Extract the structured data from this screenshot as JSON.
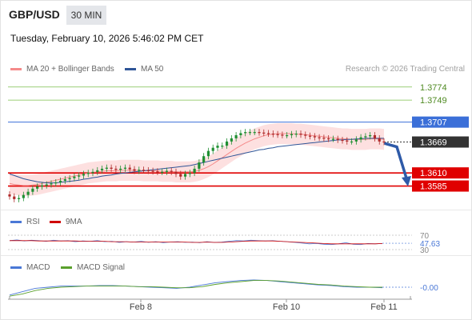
{
  "header": {
    "symbol": "GBP/USD",
    "timeframe": "30 MIN",
    "datetime": "Tuesday, February 10, 2026 5:46:02 PM CET"
  },
  "legend": {
    "ma20_label": "MA 20 + Bollinger Bands",
    "ma50_label": "MA 50",
    "credit": "Research © 2026 Trading Central",
    "rsi_label": "RSI",
    "rsi_ma_label": "9MA",
    "macd_label": "MACD",
    "macd_signal_label": "MACD Signal"
  },
  "colors": {
    "ma20": "#f58a8a",
    "ma50": "#2f5597",
    "bands_fill": "#fde0e0",
    "candle_up": "#1f8f32",
    "candle_down": "#b02a2a",
    "target": "#7cbf4a",
    "resistance": "#3b6fd8",
    "support": "#e00000",
    "current": "#333333",
    "arrow": "#2e5aa8",
    "macd_line": "#4a78d6",
    "macd_signal": "#5aa02c"
  },
  "chart_data": [
    {
      "type": "candlestick",
      "title": "GBP/USD",
      "ylim": [
        1.354,
        1.3795
      ],
      "x_tick_labels": [
        "Feb 8",
        "Feb 10",
        "Feb 11"
      ],
      "levels": [
        {
          "name": "target_2",
          "value": 1.3774,
          "label": "1.3774"
        },
        {
          "name": "target_1",
          "value": 1.3749,
          "label": "1.3749"
        },
        {
          "name": "resistance",
          "value": 1.3707,
          "label": "1.3707"
        },
        {
          "name": "last_price",
          "value": 1.3669,
          "label": "1.3669"
        },
        {
          "name": "support_1",
          "value": 1.361,
          "label": "1.3610"
        },
        {
          "name": "support_2",
          "value": 1.3585,
          "label": "1.3585"
        }
      ],
      "close_series": [
        1.3565,
        1.356,
        1.3562,
        1.3568,
        1.3574,
        1.358,
        1.3584,
        1.3586,
        1.3588,
        1.359,
        1.3592,
        1.3595,
        1.3598,
        1.36,
        1.3603,
        1.3605,
        1.3608,
        1.361,
        1.3612,
        1.3615,
        1.3618,
        1.362,
        1.3618,
        1.3616,
        1.3618,
        1.362,
        1.3617,
        1.3614,
        1.3616,
        1.3615,
        1.3614,
        1.3613,
        1.3612,
        1.3612,
        1.3614,
        1.3612,
        1.3608,
        1.3603,
        1.3608,
        1.361,
        1.3618,
        1.363,
        1.3642,
        1.3652,
        1.3658,
        1.3662,
        1.3662,
        1.367,
        1.3676,
        1.3682,
        1.3686,
        1.3688,
        1.3688,
        1.3688,
        1.3687,
        1.3686,
        1.3685,
        1.3684,
        1.3683,
        1.3682,
        1.3682,
        1.3684,
        1.3685,
        1.3683,
        1.3681,
        1.368,
        1.3678,
        1.3677,
        1.3676,
        1.3675,
        1.3675,
        1.3673,
        1.3672,
        1.367,
        1.367,
        1.3674,
        1.3678,
        1.368,
        1.3682,
        1.3676,
        1.367,
        1.3669
      ],
      "ma20_series": [
        1.359,
        1.3588,
        1.3587,
        1.3586,
        1.3586,
        1.3587,
        1.3588,
        1.359,
        1.3592,
        1.3594,
        1.3596,
        1.3598,
        1.36,
        1.3602,
        1.3604,
        1.3606,
        1.3608,
        1.361,
        1.3611,
        1.3612,
        1.3613,
        1.3614,
        1.3614,
        1.3614,
        1.3615,
        1.3615,
        1.3615,
        1.3615,
        1.3615,
        1.3614,
        1.3614,
        1.3614,
        1.3614,
        1.3613,
        1.3613,
        1.3613,
        1.3612,
        1.3612,
        1.3612,
        1.3612,
        1.3613,
        1.3615,
        1.3618,
        1.3622,
        1.3627,
        1.3633,
        1.3639,
        1.3645,
        1.3651,
        1.3657,
        1.3662,
        1.3667,
        1.3671,
        1.3675,
        1.3678,
        1.3681,
        1.3683,
        1.3684,
        1.3685,
        1.3685,
        1.3685,
        1.3685,
        1.3684,
        1.3684,
        1.3683,
        1.3682,
        1.3681,
        1.368,
        1.3679,
        1.3678,
        1.3677,
        1.3676,
        1.3675,
        1.3675,
        1.3674,
        1.3674,
        1.3674,
        1.3674,
        1.3675,
        1.3675,
        1.3675,
        1.3674
      ],
      "ma50_series": [
        1.3608,
        1.3605,
        1.3602,
        1.3599,
        1.3597,
        1.3595,
        1.3593,
        1.3592,
        1.3591,
        1.3591,
        1.3591,
        1.3592,
        1.3593,
        1.3594,
        1.3595,
        1.3596,
        1.3598,
        1.3599,
        1.3601,
        1.3602,
        1.3604,
        1.3605,
        1.3606,
        1.3608,
        1.3609,
        1.361,
        1.3611,
        1.3612,
        1.3613,
        1.3614,
        1.3615,
        1.3616,
        1.3617,
        1.3618,
        1.3619,
        1.362,
        1.3621,
        1.3622,
        1.3623,
        1.3624,
        1.3626,
        1.3628,
        1.363,
        1.3632,
        1.3634,
        1.3636,
        1.3638,
        1.364,
        1.3642,
        1.3644,
        1.3646,
        1.3648,
        1.365,
        1.3652,
        1.3654,
        1.3655,
        1.3657,
        1.3658,
        1.366,
        1.3661,
        1.3662,
        1.3663,
        1.3664,
        1.3665,
        1.3666,
        1.3667,
        1.3668,
        1.3669,
        1.367,
        1.3671,
        1.3672,
        1.3673,
        1.3673,
        1.3674,
        1.3674,
        1.3675,
        1.3675,
        1.3676,
        1.3676,
        1.3676,
        1.3676,
        1.3676
      ],
      "band_width": 0.002
    },
    {
      "type": "line",
      "title": "RSI",
      "ylim": [
        30,
        70
      ],
      "levels": [
        {
          "value": 70,
          "label": "70"
        },
        {
          "value": 30,
          "label": "30"
        }
      ],
      "last_value_label": "47.63",
      "series": [
        {
          "name": "RSI",
          "values": [
            55,
            57,
            54,
            56,
            55,
            53,
            56,
            54,
            55,
            52,
            54,
            53,
            55,
            52,
            53,
            50,
            52,
            51,
            53,
            50,
            52,
            49,
            51,
            52,
            50,
            51,
            49,
            52,
            50,
            51,
            53,
            55,
            54,
            56,
            55,
            54,
            55,
            53,
            52,
            50,
            48,
            46,
            47,
            45,
            44,
            46,
            49,
            45,
            44,
            47,
            46,
            47
          ]
        },
        {
          "name": "9MA",
          "values": [
            55,
            55,
            55,
            55,
            54,
            54,
            54,
            54,
            54,
            54,
            53,
            53,
            53,
            53,
            52,
            52,
            52,
            51,
            51,
            51,
            51,
            51,
            51,
            51,
            51,
            50,
            50,
            51,
            50,
            50,
            51,
            52,
            53,
            54,
            54,
            54,
            54,
            53,
            52,
            51,
            50,
            49,
            48,
            47,
            46,
            46,
            46,
            46,
            46,
            46,
            46,
            47
          ]
        }
      ]
    },
    {
      "type": "line",
      "title": "MACD",
      "ylim": [
        -0.002,
        0.002
      ],
      "last_value_label": "-0.00",
      "series": [
        {
          "name": "MACD",
          "values": [
            -0.0014,
            -0.0008,
            -0.0002,
            0.0,
            0.0002,
            0.0002,
            0.0002,
            0.0003,
            0.0003,
            0.0002,
            0.0001,
            0.0,
            -0.0001,
            -0.0002,
            0.0,
            0.0004,
            0.0008,
            0.001,
            0.0012,
            0.0013,
            0.0012,
            0.001,
            0.0008,
            0.0006,
            0.0004,
            0.0003,
            0.0001,
            0.0,
            0.0,
            -0.0001
          ]
        },
        {
          "name": "MACD Signal",
          "values": [
            -0.0016,
            -0.0012,
            -0.0006,
            -0.0002,
            0.0,
            0.0001,
            0.0002,
            0.0002,
            0.0002,
            0.0002,
            0.0001,
            0.0001,
            0.0,
            -0.0001,
            -0.0001,
            0.0001,
            0.0005,
            0.0008,
            0.001,
            0.0012,
            0.0012,
            0.0011,
            0.0009,
            0.0007,
            0.0005,
            0.0004,
            0.0002,
            0.0001,
            0.0,
            0.0
          ]
        }
      ]
    }
  ]
}
